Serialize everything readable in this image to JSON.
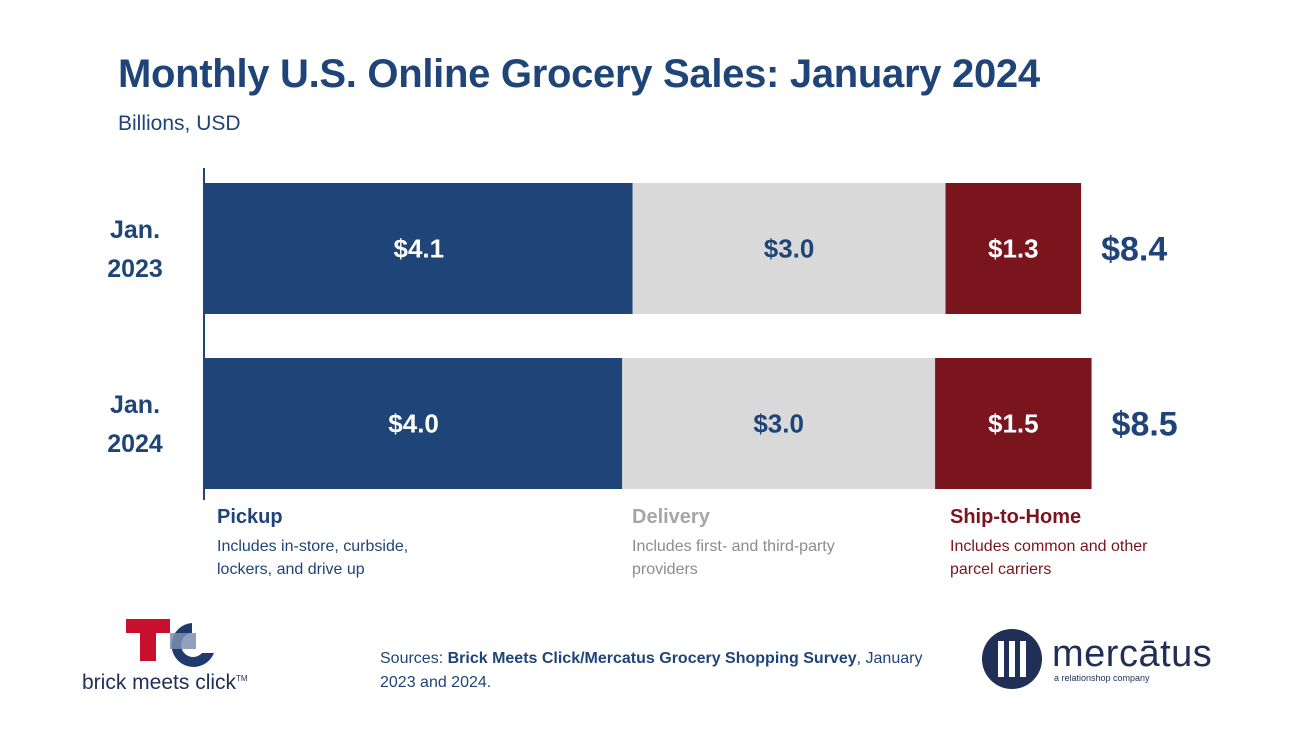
{
  "title": "Monthly U.S. Online Grocery Sales: January 2024",
  "subtitle": "Billions, USD",
  "chart_data": {
    "type": "bar",
    "orientation": "horizontal",
    "stacked": true,
    "title": "Monthly U.S. Online Grocery Sales: January 2024",
    "subtitle": "Billions, USD",
    "categories": [
      [
        "Jan.",
        "2023"
      ],
      [
        "Jan.",
        "2024"
      ]
    ],
    "series": [
      {
        "name": "Pickup",
        "values": [
          4.1,
          4.0
        ],
        "labels": [
          "$4.1",
          "$4.0"
        ],
        "color": "#1f4478",
        "label_color": "#ffffff"
      },
      {
        "name": "Delivery",
        "values": [
          3.0,
          3.0
        ],
        "labels": [
          "$3.0",
          "$3.0"
        ],
        "color": "#d9d9d9",
        "label_color": "#1f4478"
      },
      {
        "name": "Ship-to-Home",
        "values": [
          1.3,
          1.5
        ],
        "labels": [
          "$1.3",
          "$1.5"
        ],
        "color": "#7a151e",
        "label_color": "#ffffff"
      }
    ],
    "totals": [
      "$8.4",
      "$8.5"
    ],
    "xlim": [
      0,
      8.5
    ],
    "grid": false,
    "legend": "bottom"
  },
  "legend": [
    {
      "title": "Pickup",
      "desc": "Includes in-store, curbside, lockers, and drive up",
      "color": "#1f4478",
      "desc_color": "#1f4478"
    },
    {
      "title": "Delivery",
      "desc": "Includes first- and third-party providers",
      "color": "#a6a6a6",
      "desc_color": "#8c8c8c"
    },
    {
      "title": "Ship-to-Home",
      "desc": "Includes common and other parcel carriers",
      "color": "#7a151e",
      "desc_color": "#7a151e"
    }
  ],
  "sources": {
    "prefix": "Sources: ",
    "bold": "Brick Meets Click/Mercatus Grocery Shopping Survey",
    "suffix": ", January 2023 and 2024."
  },
  "logos": {
    "left_text": "brick meets click",
    "left_tm": "TM",
    "right_text": "mercātus",
    "right_tagline": "a relationshop company"
  }
}
